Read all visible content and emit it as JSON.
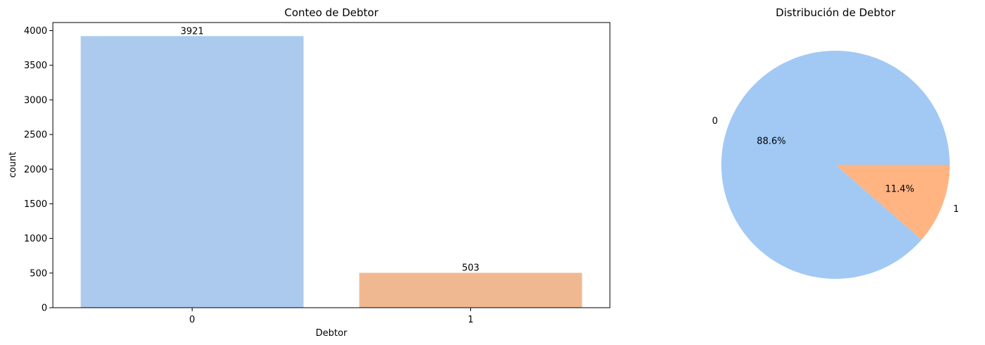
{
  "chart_data": [
    {
      "type": "bar",
      "title": "Conteo de Debtor",
      "xlabel": "Debtor",
      "ylabel": "count",
      "categories": [
        "0",
        "1"
      ],
      "values": [
        3921,
        503
      ],
      "data_labels": [
        "3921",
        "503"
      ],
      "colors": [
        "#abcaee",
        "#f0b891"
      ],
      "ylim": [
        0,
        4117
      ],
      "yticks": [
        0,
        500,
        1000,
        1500,
        2000,
        2500,
        3000,
        3500,
        4000
      ],
      "grid": false
    },
    {
      "type": "pie",
      "title": "Distribución de Debtor",
      "labels": [
        "0",
        "1"
      ],
      "values": [
        88.6,
        11.4
      ],
      "pct_labels": [
        "88.6%",
        "11.4%"
      ],
      "colors": [
        "#a1c9f4",
        "#ffb482"
      ]
    }
  ]
}
